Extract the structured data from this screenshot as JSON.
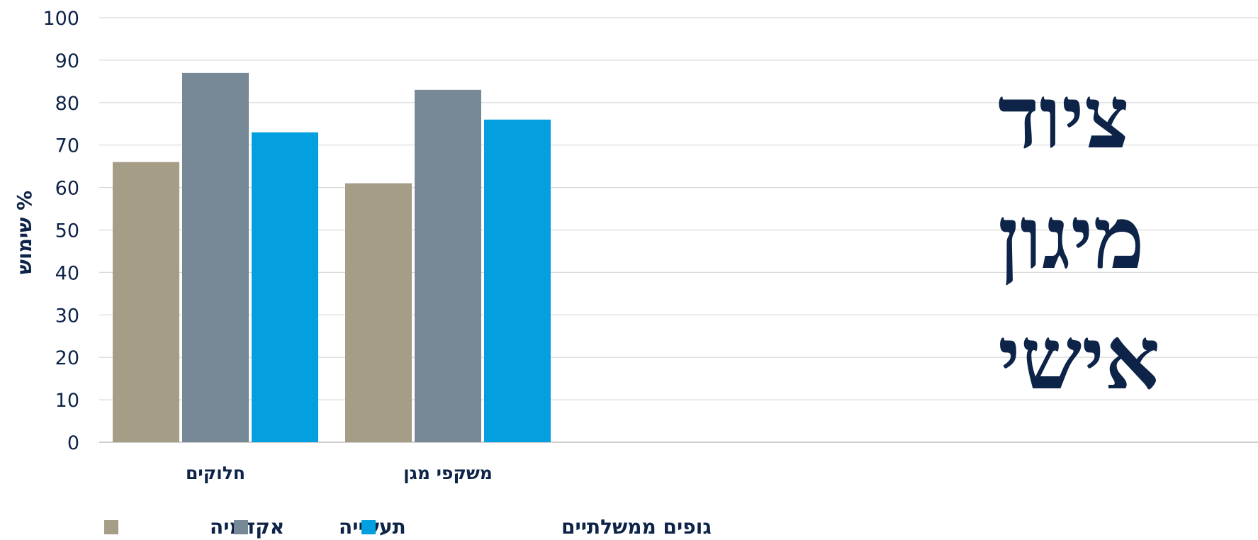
{
  "chart_data": {
    "type": "bar",
    "title": "ציוד מיגון אישי",
    "title_lines": [
      "ציוד",
      "מיגון",
      "אישי"
    ],
    "ylabel": "% שימוש",
    "xlabel": "",
    "ylim": [
      0,
      100
    ],
    "yticks": [
      0,
      10,
      20,
      30,
      40,
      50,
      60,
      70,
      80,
      90,
      100
    ],
    "grid": true,
    "legend_position": "bottom",
    "categories": [
      "חלוקים",
      "משקפי מגן"
    ],
    "series": [
      {
        "name": "אקדמיה",
        "color": "#a59d86",
        "values": [
          66,
          61
        ]
      },
      {
        "name": "תעשייה",
        "color": "#778896",
        "values": [
          87,
          83
        ]
      },
      {
        "name": "גופים ממשלתיים",
        "color": "#039fdf",
        "values": [
          73,
          76
        ]
      }
    ]
  }
}
